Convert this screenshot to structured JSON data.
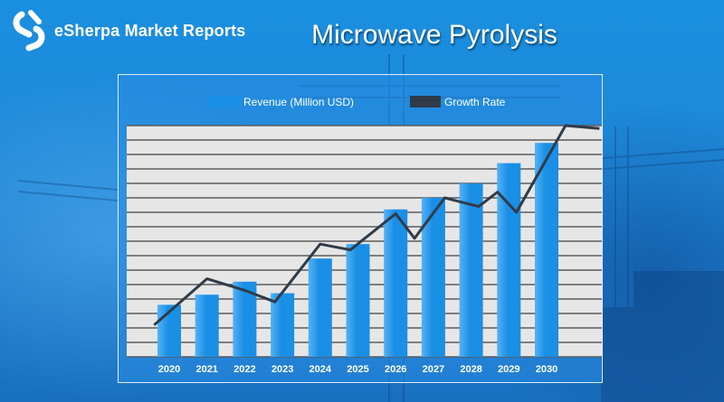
{
  "brand": {
    "name": "eSherpa Market Reports"
  },
  "title": "Microwave Pyrolysis",
  "colors": {
    "bar": "#1a8fe6",
    "bar_highlight": "#52b2f5",
    "line": "#2f3b48",
    "plot_bg": "#e6e6e6",
    "gridline": "#5b5b5b"
  },
  "chart_data": {
    "type": "bar",
    "title": "",
    "xlabel": "",
    "ylabel": "",
    "categories": [
      "2020",
      "2021",
      "2022",
      "2023",
      "2024",
      "2025",
      "2026",
      "2027",
      "2028",
      "2029",
      "2030"
    ],
    "ylim": [
      0,
      16
    ],
    "grid": true,
    "legend_position": "top",
    "series": [
      {
        "name": "Revenue (Million USD)",
        "type": "bar",
        "values": [
          3.6,
          4.3,
          5.2,
          4.4,
          6.8,
          7.8,
          10.2,
          11.0,
          12.0,
          13.4,
          14.8
        ]
      },
      {
        "name": "Growth Rate",
        "type": "line",
        "values": [
          2.2,
          5.4,
          4.6,
          3.8,
          7.8,
          7.4,
          9.9,
          8.2,
          11.0,
          10.4,
          11.4,
          10.0,
          16.0,
          15.8
        ],
        "x": [
          2019.6,
          2021.0,
          2022.0,
          2022.8,
          2024.0,
          2024.8,
          2026.0,
          2026.5,
          2027.3,
          2028.2,
          2028.7,
          2029.2,
          2030.5,
          2031.4
        ]
      }
    ]
  }
}
